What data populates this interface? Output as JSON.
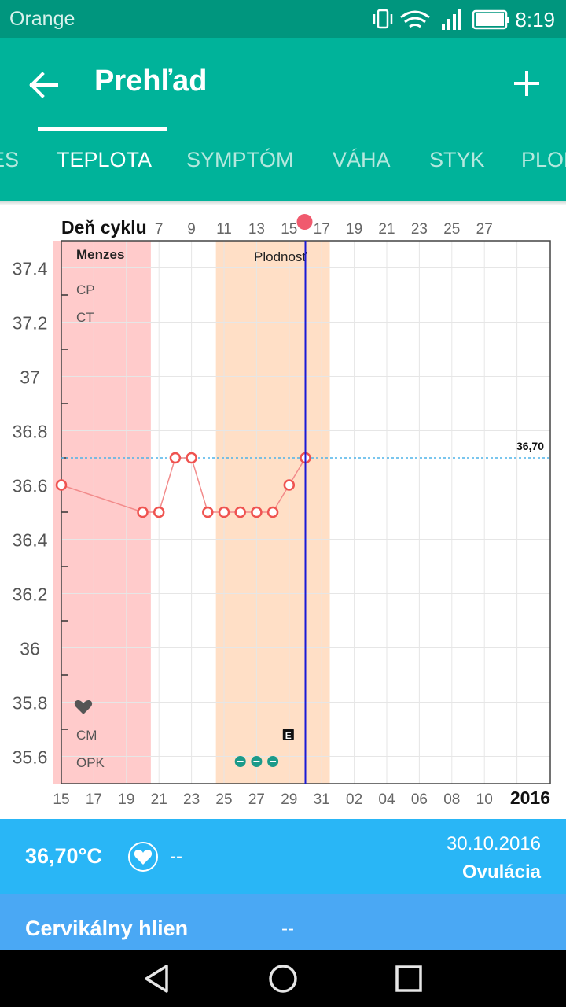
{
  "status_bar": {
    "carrier": "Orange",
    "time": "8:19"
  },
  "app_bar": {
    "title": "Prehľad"
  },
  "tabs": [
    {
      "label": "ES"
    },
    {
      "label": "TEPLOTA"
    },
    {
      "label": "SYMPTÓM"
    },
    {
      "label": "VÁHA"
    },
    {
      "label": "STYK"
    },
    {
      "label": "PLOD"
    }
  ],
  "chart_data": {
    "type": "line",
    "title": "Deň cyklu",
    "cycle_day_ticks": [
      "7",
      "9",
      "11",
      "13",
      "15",
      "17",
      "19",
      "21",
      "23",
      "25",
      "27"
    ],
    "date_ticks": [
      "15",
      "17",
      "19",
      "21",
      "23",
      "25",
      "27",
      "29",
      "31",
      "02",
      "04",
      "06",
      "08",
      "10"
    ],
    "year_label": "2016",
    "ylim": [
      35.5,
      37.5
    ],
    "y_ticks": [
      "37.4",
      "37.2",
      "37",
      "36.8",
      "36.6",
      "36.4",
      "36.2",
      "36",
      "35.8",
      "35.6"
    ],
    "x_range": [
      15,
      45
    ],
    "series": [
      {
        "name": "Teplota",
        "x": [
          15,
          20,
          21,
          22,
          23,
          24,
          25,
          26,
          27,
          28,
          29,
          30
        ],
        "values": [
          36.6,
          36.5,
          36.5,
          36.7,
          36.7,
          36.5,
          36.5,
          36.5,
          36.5,
          36.5,
          36.6,
          36.7
        ]
      }
    ],
    "coverline": {
      "value": 36.7,
      "label": "36,70"
    },
    "ovulation_day": 30,
    "periods": [
      {
        "label": "Menzes",
        "start": 15,
        "end": 20,
        "color": "#ffcbcb"
      },
      {
        "label": "Plodnosť",
        "start": 25,
        "end": 31,
        "color": "#ffdfc6"
      }
    ],
    "row_labels": {
      "cp": "CP",
      "ct": "CT",
      "cm": "CM",
      "opk": "OPK"
    },
    "heart_marker": "heart-icon",
    "e_marker": {
      "day": 29,
      "text": "E"
    },
    "opk_markers": [
      26,
      27,
      28
    ],
    "colors": {
      "line": "#f28b8b",
      "marker": "#ef5350",
      "coverline": "#4fb3e8",
      "ovulation": "#1a1ad6",
      "opk": "#1b9a8a"
    }
  },
  "info_bar": {
    "temperature": "36,70°C",
    "heart_value": "--",
    "date": "30.10.2016",
    "status": "Ovulácia"
  },
  "cervical_mucus": {
    "label": "Cervikálny hlien",
    "value": "--"
  }
}
